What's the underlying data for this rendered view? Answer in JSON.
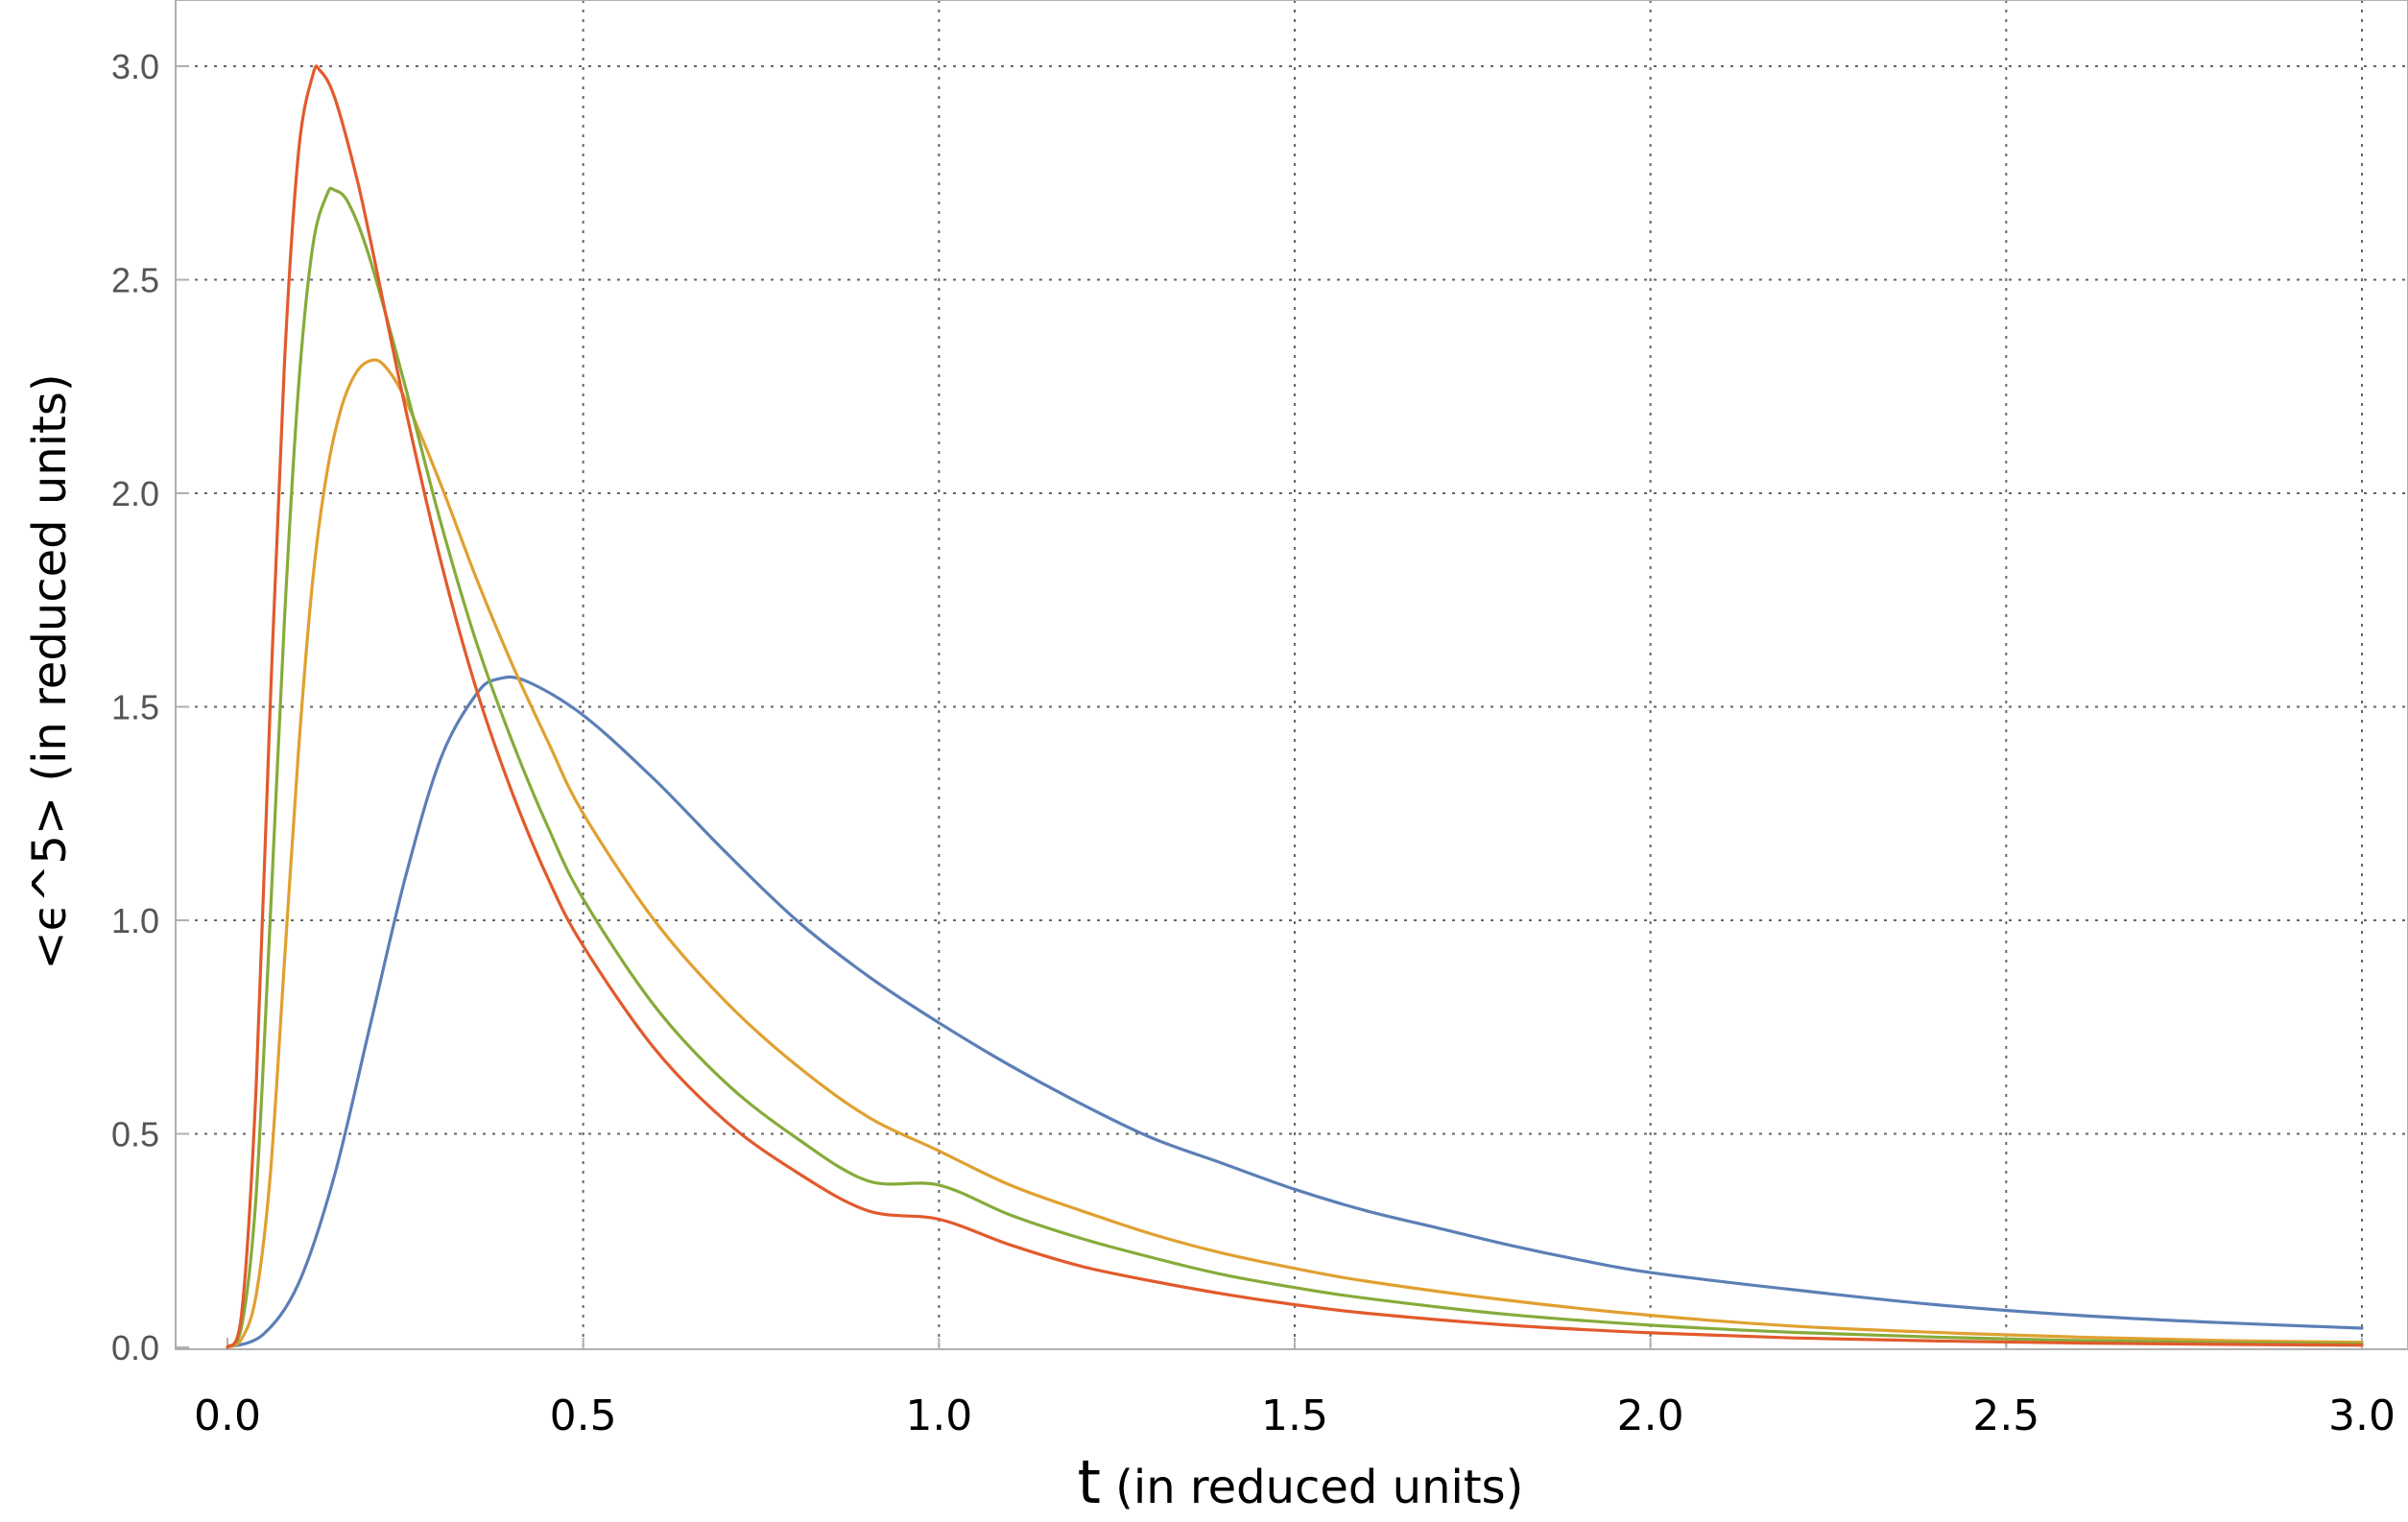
{
  "chart_data": {
    "type": "line",
    "title": "",
    "xlabel_symbol": "t",
    "xlabel_rest": " (in reduced units)",
    "ylabel": "<ϵ^5>   (in reduced units)",
    "xlim": [
      0,
      3.0
    ],
    "ylim": [
      0,
      3.0
    ],
    "x_ticks": [
      "0.0",
      "0.5",
      "1.0",
      "1.5",
      "2.0",
      "2.5",
      "3.0"
    ],
    "y_ticks": [
      "0.0",
      "0.5",
      "1.0",
      "1.5",
      "2.0",
      "2.5",
      "3.0"
    ],
    "grid": true,
    "legend": "none",
    "series": [
      {
        "color": "#5b7fb6",
        "points": [
          [
            0,
            0
          ],
          [
            0.05,
            0.03
          ],
          [
            0.1,
            0.15
          ],
          [
            0.15,
            0.4
          ],
          [
            0.2,
            0.75
          ],
          [
            0.25,
            1.1
          ],
          [
            0.3,
            1.38
          ],
          [
            0.35,
            1.53
          ],
          [
            0.38,
            1.565
          ],
          [
            0.42,
            1.56
          ],
          [
            0.5,
            1.48
          ],
          [
            0.6,
            1.33
          ],
          [
            0.7,
            1.16
          ],
          [
            0.8,
            1.0
          ],
          [
            0.9,
            0.87
          ],
          [
            1.0,
            0.76
          ],
          [
            1.1,
            0.66
          ],
          [
            1.2,
            0.57
          ],
          [
            1.3,
            0.49
          ],
          [
            1.4,
            0.43
          ],
          [
            1.5,
            0.37
          ],
          [
            1.6,
            0.32
          ],
          [
            1.7,
            0.28
          ],
          [
            1.8,
            0.24
          ],
          [
            1.9,
            0.205
          ],
          [
            2.0,
            0.175
          ],
          [
            2.2,
            0.135
          ],
          [
            2.4,
            0.1
          ],
          [
            2.6,
            0.075
          ],
          [
            2.8,
            0.058
          ],
          [
            3.0,
            0.045
          ]
        ]
      },
      {
        "color": "#e0a030",
        "points": [
          [
            0,
            0
          ],
          [
            0.02,
            0.02
          ],
          [
            0.04,
            0.12
          ],
          [
            0.06,
            0.4
          ],
          [
            0.08,
            0.9
          ],
          [
            0.1,
            1.4
          ],
          [
            0.12,
            1.8
          ],
          [
            0.14,
            2.05
          ],
          [
            0.16,
            2.2
          ],
          [
            0.18,
            2.28
          ],
          [
            0.2,
            2.31
          ],
          [
            0.22,
            2.3
          ],
          [
            0.25,
            2.22
          ],
          [
            0.3,
            2.02
          ],
          [
            0.35,
            1.8
          ],
          [
            0.4,
            1.6
          ],
          [
            0.45,
            1.42
          ],
          [
            0.5,
            1.25
          ],
          [
            0.6,
            1.0
          ],
          [
            0.7,
            0.81
          ],
          [
            0.8,
            0.66
          ],
          [
            0.9,
            0.54
          ],
          [
            1.0,
            0.46
          ],
          [
            1.1,
            0.38
          ],
          [
            1.2,
            0.32
          ],
          [
            1.3,
            0.265
          ],
          [
            1.4,
            0.22
          ],
          [
            1.5,
            0.185
          ],
          [
            1.6,
            0.155
          ],
          [
            1.8,
            0.11
          ],
          [
            2.0,
            0.075
          ],
          [
            2.2,
            0.05
          ],
          [
            2.4,
            0.035
          ],
          [
            2.6,
            0.024
          ],
          [
            2.8,
            0.016
          ],
          [
            3.0,
            0.012
          ]
        ]
      },
      {
        "color": "#86ab3a",
        "points": [
          [
            0,
            0
          ],
          [
            0.02,
            0.05
          ],
          [
            0.04,
            0.35
          ],
          [
            0.06,
            1.0
          ],
          [
            0.08,
            1.7
          ],
          [
            0.1,
            2.25
          ],
          [
            0.12,
            2.58
          ],
          [
            0.14,
            2.7
          ],
          [
            0.15,
            2.71
          ],
          [
            0.17,
            2.68
          ],
          [
            0.2,
            2.55
          ],
          [
            0.25,
            2.25
          ],
          [
            0.3,
            1.93
          ],
          [
            0.35,
            1.65
          ],
          [
            0.4,
            1.42
          ],
          [
            0.45,
            1.22
          ],
          [
            0.5,
            1.05
          ],
          [
            0.6,
            0.8
          ],
          [
            0.7,
            0.62
          ],
          [
            0.8,
            0.49
          ],
          [
            0.9,
            0.39
          ],
          [
            1.0,
            0.38
          ],
          [
            1.1,
            0.31
          ],
          [
            1.2,
            0.255
          ],
          [
            1.3,
            0.21
          ],
          [
            1.4,
            0.17
          ],
          [
            1.5,
            0.14
          ],
          [
            1.6,
            0.115
          ],
          [
            1.8,
            0.077
          ],
          [
            2.0,
            0.052
          ],
          [
            2.2,
            0.035
          ],
          [
            2.4,
            0.024
          ],
          [
            2.6,
            0.016
          ],
          [
            2.8,
            0.011
          ],
          [
            3.0,
            0.008
          ]
        ]
      },
      {
        "color": "#e25a2c",
        "points": [
          [
            0,
            0
          ],
          [
            0.02,
            0.08
          ],
          [
            0.04,
            0.6
          ],
          [
            0.06,
            1.5
          ],
          [
            0.08,
            2.3
          ],
          [
            0.1,
            2.8
          ],
          [
            0.12,
            2.98
          ],
          [
            0.13,
            2.99
          ],
          [
            0.15,
            2.93
          ],
          [
            0.18,
            2.75
          ],
          [
            0.2,
            2.6
          ],
          [
            0.25,
            2.2
          ],
          [
            0.3,
            1.84
          ],
          [
            0.35,
            1.54
          ],
          [
            0.4,
            1.3
          ],
          [
            0.45,
            1.1
          ],
          [
            0.5,
            0.94
          ],
          [
            0.6,
            0.7
          ],
          [
            0.7,
            0.53
          ],
          [
            0.8,
            0.41
          ],
          [
            0.9,
            0.32
          ],
          [
            1.0,
            0.3
          ],
          [
            1.1,
            0.24
          ],
          [
            1.2,
            0.19
          ],
          [
            1.3,
            0.155
          ],
          [
            1.4,
            0.125
          ],
          [
            1.5,
            0.1
          ],
          [
            1.6,
            0.08
          ],
          [
            1.8,
            0.052
          ],
          [
            2.0,
            0.034
          ],
          [
            2.2,
            0.022
          ],
          [
            2.4,
            0.015
          ],
          [
            2.6,
            0.01
          ],
          [
            2.8,
            0.007
          ],
          [
            3.0,
            0.005
          ]
        ]
      }
    ]
  }
}
